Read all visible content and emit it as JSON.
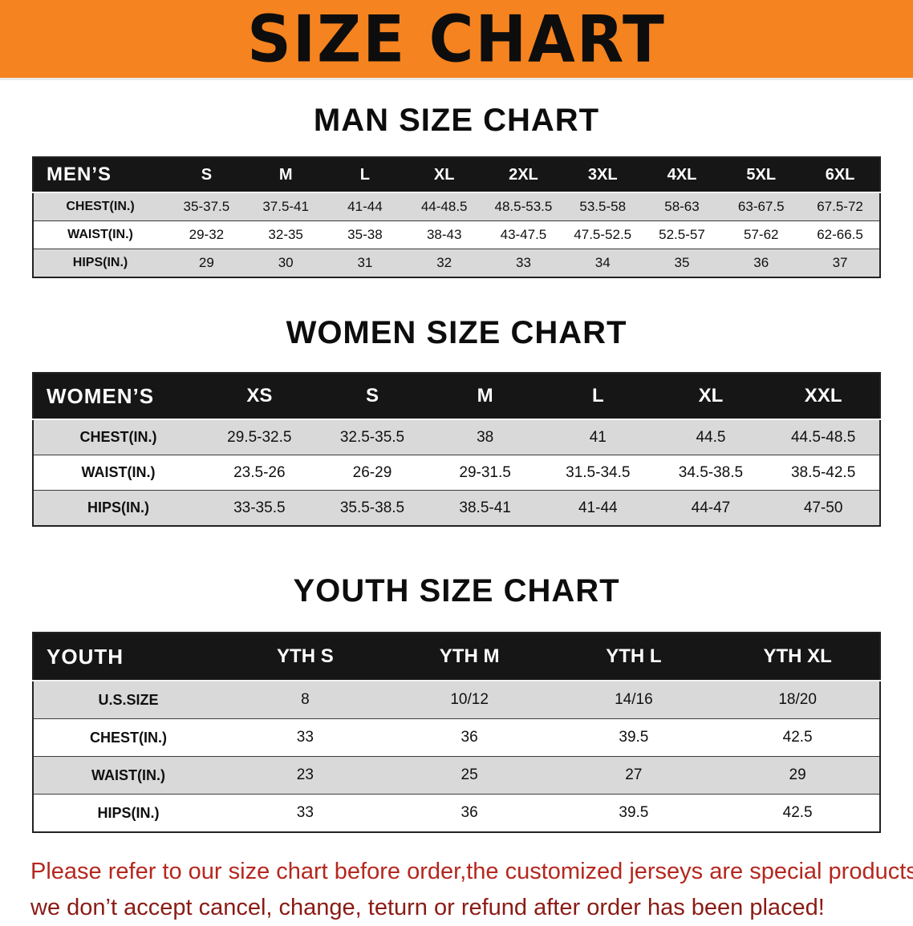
{
  "banner": {
    "title": "SIZE CHART"
  },
  "colors": {
    "banner": "#f5831f",
    "header_bg": "#161616",
    "row_alt": "#d9d9d9",
    "notice_line1": "#b5271e",
    "notice_line2": "#8a1b15"
  },
  "sections": [
    {
      "heading": "MAN SIZE CHART",
      "table": {
        "header": [
          "MEN’S",
          "S",
          "M",
          "L",
          "XL",
          "2XL",
          "3XL",
          "4XL",
          "5XL",
          "6XL"
        ],
        "rows": [
          [
            "CHEST(IN.)",
            "35-37.5",
            "37.5-41",
            "41-44",
            "44-48.5",
            "48.5-53.5",
            "53.5-58",
            "58-63",
            "63-67.5",
            "67.5-72"
          ],
          [
            "WAIST(IN.)",
            "29-32",
            "32-35",
            "35-38",
            "38-43",
            "43-47.5",
            "47.5-52.5",
            "52.5-57",
            "57-62",
            "62-66.5"
          ],
          [
            "HIPS(IN.)",
            "29",
            "30",
            "31",
            "32",
            "33",
            "34",
            "35",
            "36",
            "37"
          ]
        ]
      }
    },
    {
      "heading": "WOMEN SIZE CHART",
      "table": {
        "header": [
          "WOMEN’S",
          "XS",
          "S",
          "M",
          "L",
          "XL",
          "XXL"
        ],
        "rows": [
          [
            "CHEST(IN.)",
            "29.5-32.5",
            "32.5-35.5",
            "38",
            "41",
            "44.5",
            "44.5-48.5"
          ],
          [
            "WAIST(IN.)",
            "23.5-26",
            "26-29",
            "29-31.5",
            "31.5-34.5",
            "34.5-38.5",
            "38.5-42.5"
          ],
          [
            "HIPS(IN.)",
            "33-35.5",
            "35.5-38.5",
            "38.5-41",
            "41-44",
            "44-47",
            "47-50"
          ]
        ]
      }
    },
    {
      "heading": "YOUTH SIZE CHART",
      "table": {
        "header": [
          "YOUTH",
          "YTH S",
          "YTH M",
          "YTH L",
          "YTH XL"
        ],
        "rows": [
          [
            "U.S.SIZE",
            "8",
            "10/12",
            "14/16",
            "18/20"
          ],
          [
            "CHEST(IN.)",
            "33",
            "36",
            "39.5",
            "42.5"
          ],
          [
            "WAIST(IN.)",
            "23",
            "25",
            "27",
            "29"
          ],
          [
            "HIPS(IN.)",
            "33",
            "36",
            "39.5",
            "42.5"
          ]
        ]
      }
    }
  ],
  "footer": {
    "line1": "Please refer to our size chart before order,the customized jerseys are special products,",
    "line2": "we don’t accept cancel, change, teturn or refund after order has been placed!"
  }
}
